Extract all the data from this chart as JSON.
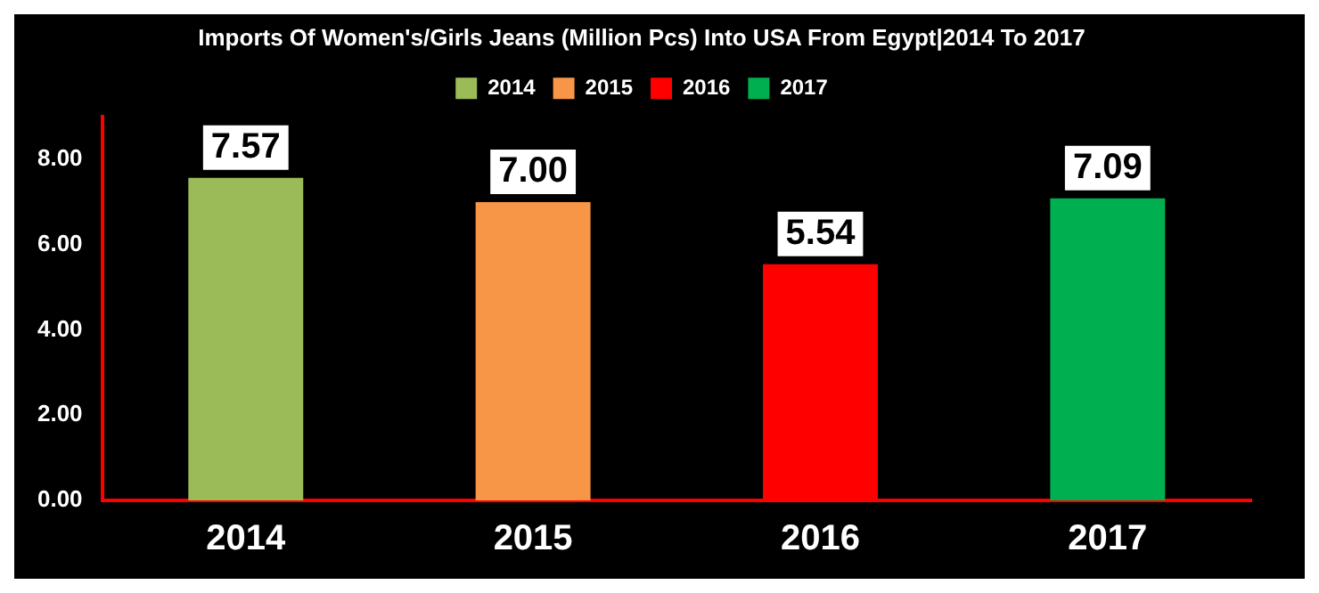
{
  "chart_data": {
    "type": "bar",
    "title": "Imports Of Women's/Girls Jeans (Million Pcs) Into USA From Egypt|2014 To 2017",
    "categories": [
      "2014",
      "2015",
      "2016",
      "2017"
    ],
    "series": [
      {
        "name": "2014",
        "color": "#9bbb59",
        "values": [
          7.57,
          null,
          null,
          null
        ]
      },
      {
        "name": "2015",
        "color": "#f79646",
        "values": [
          null,
          7.0,
          null,
          null
        ]
      },
      {
        "name": "2016",
        "color": "#ff0000",
        "values": [
          null,
          null,
          5.54,
          null
        ]
      },
      {
        "name": "2017",
        "color": "#00b050",
        "values": [
          null,
          null,
          null,
          7.09
        ]
      }
    ],
    "stacked": true,
    "ylim": [
      0,
      9
    ],
    "yticks": [
      {
        "value": 0,
        "label": "0.00"
      },
      {
        "value": 2,
        "label": "2.00"
      },
      {
        "value": 4,
        "label": "4.00"
      },
      {
        "value": 6,
        "label": "6.00"
      },
      {
        "value": 8,
        "label": "8.00"
      }
    ],
    "value_labels": [
      "7.57",
      "7.00",
      "5.54",
      "7.09"
    ],
    "grid": false,
    "legend": "top"
  }
}
